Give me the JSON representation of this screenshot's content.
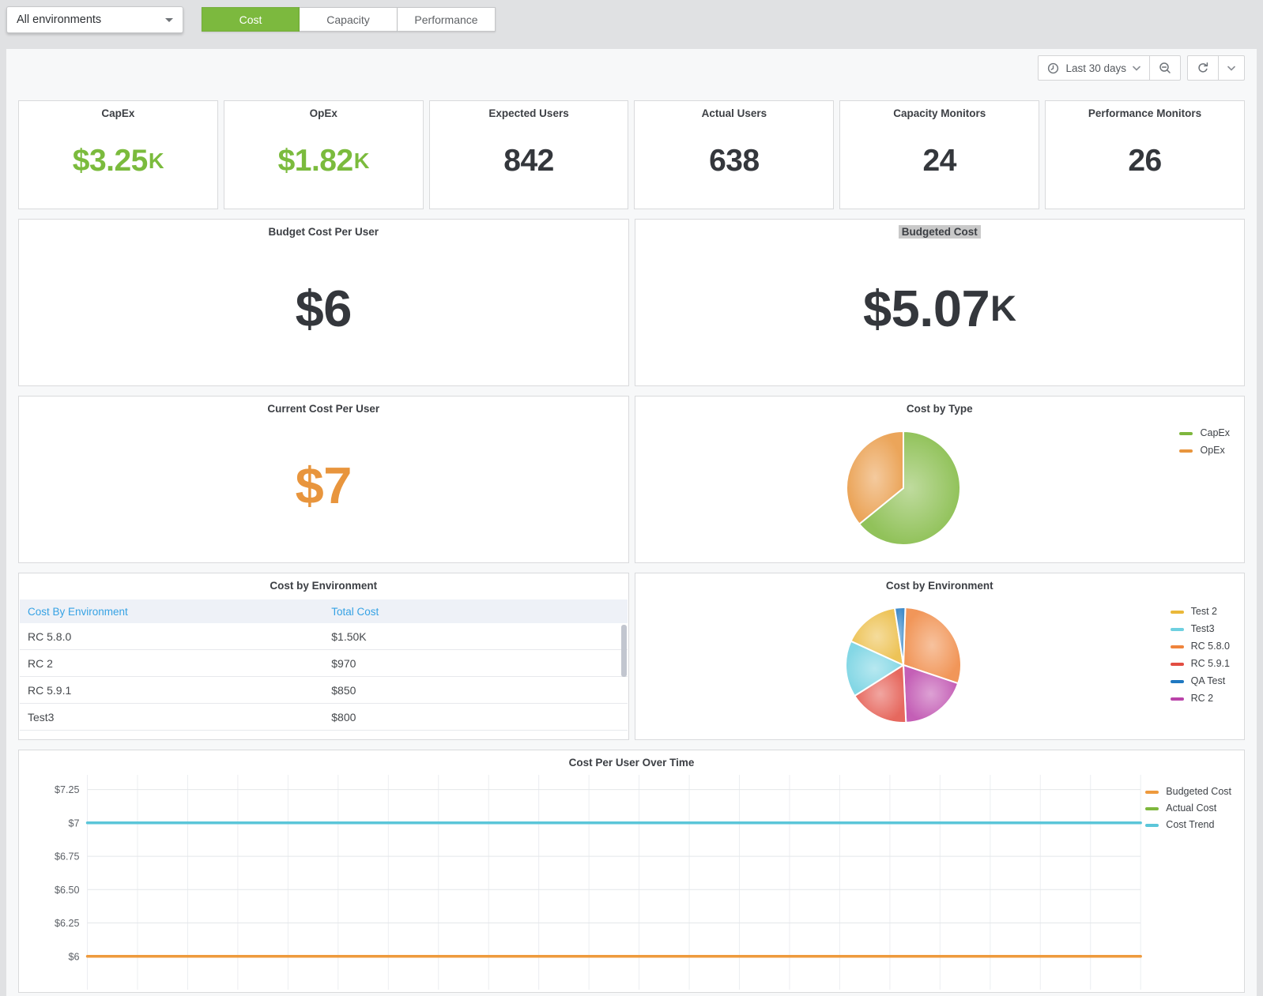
{
  "topbar": {
    "environment_selector": {
      "value": "All environments"
    },
    "tabs": [
      {
        "label": "Cost",
        "active": true
      },
      {
        "label": "Capacity",
        "active": false
      },
      {
        "label": "Performance",
        "active": false
      }
    ]
  },
  "time_controls": {
    "range_label": "Last 30 days"
  },
  "colors": {
    "brand_green": "#7cb93e",
    "stat_green": "#7bbb3d",
    "stat_orange": "#e8953d",
    "stat_dark": "#34373c",
    "table_header_blue": "#36a2e4"
  },
  "stats": [
    {
      "title": "CapEx",
      "value": "$3.25",
      "suffix": "K",
      "color": "#7bbb3d"
    },
    {
      "title": "OpEx",
      "value": "$1.82",
      "suffix": "K",
      "color": "#7bbb3d"
    },
    {
      "title": "Expected Users",
      "value": "842",
      "suffix": "",
      "color": "#34373c"
    },
    {
      "title": "Actual Users",
      "value": "638",
      "suffix": "",
      "color": "#34373c"
    },
    {
      "title": "Capacity Monitors",
      "value": "24",
      "suffix": "",
      "color": "#34373c"
    },
    {
      "title": "Performance Monitors",
      "value": "26",
      "suffix": "",
      "color": "#34373c"
    }
  ],
  "panels": {
    "budget_cost_per_user": {
      "title": "Budget Cost Per User",
      "value": "$6",
      "suffix": "",
      "color": "#34373c"
    },
    "budgeted_cost": {
      "title": "Budgeted Cost",
      "value": "$5.07",
      "suffix": "K",
      "color": "#34373c",
      "title_highlighted": true
    },
    "current_cost_per_user": {
      "title": "Current Cost Per User",
      "value": "$7",
      "suffix": "",
      "color": "#e8953d"
    }
  },
  "chart_data": [
    {
      "type": "pie",
      "title": "Cost by Type",
      "units": "USD",
      "start_angle": 0,
      "legend_position": "right",
      "slices": [
        {
          "label": "CapEx",
          "value": 3250,
          "color": "#7eb73d"
        },
        {
          "label": "OpEx",
          "value": 1820,
          "color": "#e8953d"
        }
      ],
      "legend": [
        {
          "label": "CapEx",
          "color": "#7eb73d"
        },
        {
          "label": "OpEx",
          "color": "#e8953d"
        }
      ]
    },
    {
      "type": "table",
      "title": "Cost by Environment",
      "columns": [
        "Cost By Environment",
        "Total Cost"
      ],
      "rows": [
        [
          "RC 5.8.0",
          "$1.50K"
        ],
        [
          "RC 2",
          "$970"
        ],
        [
          "RC 5.9.1",
          "$850"
        ],
        [
          "Test3",
          "$800"
        ]
      ]
    },
    {
      "type": "pie",
      "title": "Cost by Environment",
      "units": "USD",
      "start_angle": 2,
      "legend_position": "right",
      "slices": [
        {
          "label": "RC 5.8.0",
          "value": 1500,
          "color": "#ef843c"
        },
        {
          "label": "RC 2",
          "value": 970,
          "color": "#ba43a9"
        },
        {
          "label": "RC 5.9.1",
          "value": 850,
          "color": "#e24d42"
        },
        {
          "label": "Test3",
          "value": 800,
          "color": "#6ed0e0"
        },
        {
          "label": "Test 2",
          "value": 800,
          "color": "#eab839"
        },
        {
          "label": "QA Test",
          "value": 150,
          "color": "#1f78c1"
        }
      ],
      "legend": [
        {
          "label": "Test 2",
          "color": "#eab839"
        },
        {
          "label": "Test3",
          "color": "#6ed0e0"
        },
        {
          "label": "RC 5.8.0",
          "color": "#ef843c"
        },
        {
          "label": "RC 5.9.1",
          "color": "#e24d42"
        },
        {
          "label": "QA Test",
          "color": "#1f78c1"
        },
        {
          "label": "RC 2",
          "color": "#ba43a9"
        }
      ]
    },
    {
      "type": "line",
      "title": "Cost Per User Over Time",
      "ylim": [
        5.75,
        7.36
      ],
      "yticks": [
        {
          "value": 7.25,
          "label": "$7.25"
        },
        {
          "value": 7.0,
          "label": "$7"
        },
        {
          "value": 6.75,
          "label": "$6.75"
        },
        {
          "value": 6.5,
          "label": "$6.50"
        },
        {
          "value": 6.25,
          "label": "$6.25"
        },
        {
          "value": 6.0,
          "label": "$6"
        }
      ],
      "x_gridlines": 21,
      "grid": true,
      "legend_position": "right",
      "series": [
        {
          "name": "Budgeted Cost",
          "color": "#ee9a3d",
          "constant_value": 6.0
        },
        {
          "name": "Actual Cost",
          "color": "#7eb73d",
          "constant_value": null
        },
        {
          "name": "Cost Trend",
          "color": "#5bc6d9",
          "constant_value": 7.0
        }
      ]
    }
  ]
}
